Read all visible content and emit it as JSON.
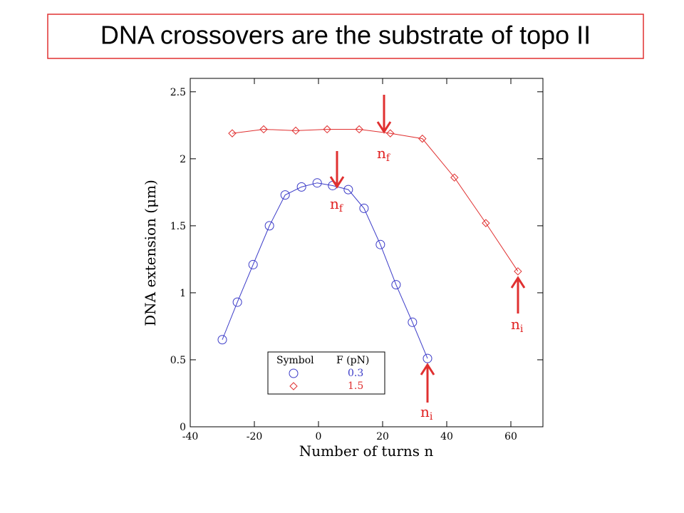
{
  "chart_data": {
    "type": "line",
    "title": "DNA crossovers are the substrate of topo II",
    "x_label": "Number of turns n",
    "y_label": "DNA extension (μm)",
    "xlim": [
      -40,
      70
    ],
    "xticks": [
      -40,
      -20,
      0,
      20,
      40,
      60
    ],
    "ylim": [
      0,
      2.6
    ],
    "yticks": [
      0,
      0.5,
      1,
      1.5,
      2,
      2.5
    ],
    "legend_headers": [
      "Symbol",
      "F (pN)"
    ],
    "series": [
      {
        "name": "0.3",
        "color": "#3b3bc8",
        "marker": "circle",
        "x": [
          -30,
          -25.3,
          -20.4,
          -15.3,
          -10.4,
          -5.3,
          -0.4,
          4.4,
          9.3,
          14.2,
          19.3,
          24.2,
          29.3,
          34
        ],
        "values": [
          0.65,
          0.93,
          1.21,
          1.5,
          1.73,
          1.79,
          1.82,
          1.8,
          1.77,
          1.63,
          1.36,
          1.06,
          0.78,
          0.51
        ]
      },
      {
        "name": "1.5",
        "color": "#e03030",
        "marker": "diamond",
        "x": [
          -26.9,
          -17.1,
          -7.1,
          2.7,
          12.7,
          22.4,
          32.4,
          42.4,
          52.2,
          62.2
        ],
        "values": [
          2.19,
          2.22,
          2.21,
          2.22,
          2.22,
          2.19,
          2.15,
          1.86,
          1.52,
          1.16
        ]
      }
    ],
    "annotations": [
      {
        "text": "n",
        "sub": "f"
      },
      {
        "text": "n",
        "sub": "f"
      },
      {
        "text": "n",
        "sub": "i"
      },
      {
        "text": "n",
        "sub": "i"
      }
    ]
  }
}
